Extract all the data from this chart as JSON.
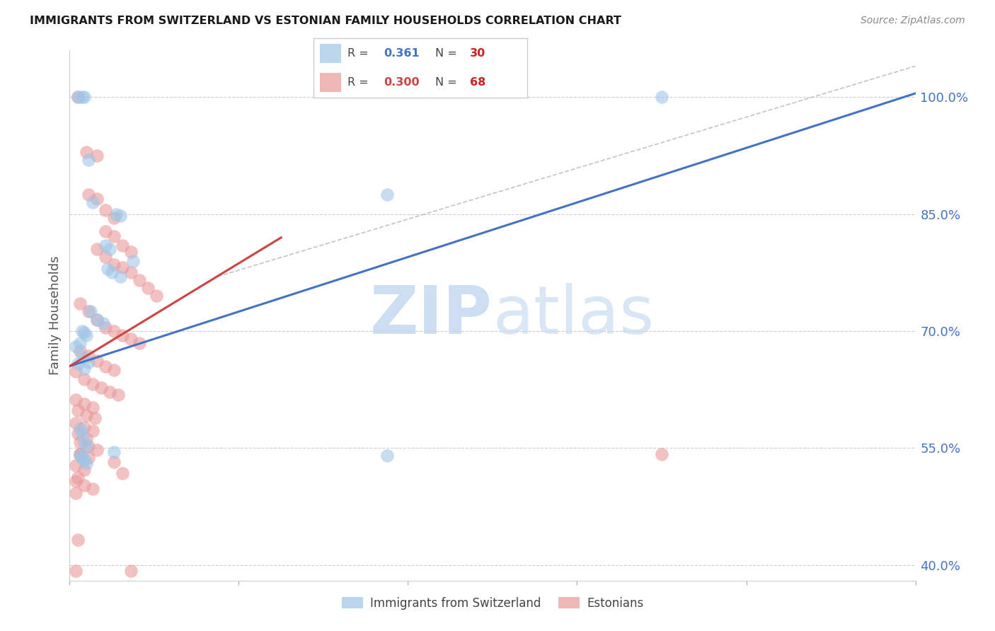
{
  "title": "IMMIGRANTS FROM SWITZERLAND VS ESTONIAN FAMILY HOUSEHOLDS CORRELATION CHART",
  "source": "Source: ZipAtlas.com",
  "ylabel": "Family Households",
  "yticks": [
    "100.0%",
    "85.0%",
    "70.0%",
    "55.0%",
    "40.0%"
  ],
  "ytick_vals": [
    1.0,
    0.85,
    0.7,
    0.55,
    0.4
  ],
  "xlim": [
    0.0,
    0.4
  ],
  "ylim": [
    0.38,
    1.06
  ],
  "blue_color": "#9fc5e8",
  "pink_color": "#ea9999",
  "blue_line_color": "#4472c4",
  "pink_line_color": "#cc4444",
  "blue_line": [
    [
      0.0,
      0.655
    ],
    [
      0.4,
      1.005
    ]
  ],
  "pink_line": [
    [
      0.0,
      0.655
    ],
    [
      0.1,
      0.82
    ]
  ],
  "blue_scatter": [
    [
      0.004,
      1.0
    ],
    [
      0.006,
      1.0
    ],
    [
      0.007,
      1.0
    ],
    [
      0.28,
      1.0
    ],
    [
      0.009,
      0.92
    ],
    [
      0.011,
      0.865
    ],
    [
      0.022,
      0.85
    ],
    [
      0.024,
      0.848
    ],
    [
      0.017,
      0.81
    ],
    [
      0.019,
      0.805
    ],
    [
      0.03,
      0.79
    ],
    [
      0.15,
      0.875
    ],
    [
      0.018,
      0.78
    ],
    [
      0.02,
      0.775
    ],
    [
      0.024,
      0.77
    ],
    [
      0.01,
      0.725
    ],
    [
      0.013,
      0.715
    ],
    [
      0.016,
      0.71
    ],
    [
      0.006,
      0.7
    ],
    [
      0.007,
      0.698
    ],
    [
      0.008,
      0.695
    ],
    [
      0.005,
      0.685
    ],
    [
      0.003,
      0.68
    ],
    [
      0.006,
      0.668
    ],
    [
      0.009,
      0.66
    ],
    [
      0.004,
      0.658
    ],
    [
      0.007,
      0.652
    ],
    [
      0.005,
      0.575
    ],
    [
      0.006,
      0.568
    ],
    [
      0.007,
      0.558
    ],
    [
      0.008,
      0.552
    ],
    [
      0.021,
      0.545
    ],
    [
      0.005,
      0.54
    ],
    [
      0.006,
      0.538
    ],
    [
      0.007,
      0.535
    ],
    [
      0.008,
      0.53
    ],
    [
      0.15,
      0.54
    ]
  ],
  "pink_scatter": [
    [
      0.004,
      1.0
    ],
    [
      0.008,
      0.93
    ],
    [
      0.013,
      0.925
    ],
    [
      0.009,
      0.875
    ],
    [
      0.013,
      0.87
    ],
    [
      0.017,
      0.855
    ],
    [
      0.021,
      0.845
    ],
    [
      0.017,
      0.828
    ],
    [
      0.021,
      0.822
    ],
    [
      0.025,
      0.81
    ],
    [
      0.029,
      0.802
    ],
    [
      0.013,
      0.805
    ],
    [
      0.017,
      0.795
    ],
    [
      0.021,
      0.785
    ],
    [
      0.025,
      0.782
    ],
    [
      0.029,
      0.775
    ],
    [
      0.033,
      0.765
    ],
    [
      0.037,
      0.755
    ],
    [
      0.041,
      0.745
    ],
    [
      0.005,
      0.735
    ],
    [
      0.009,
      0.725
    ],
    [
      0.013,
      0.715
    ],
    [
      0.017,
      0.705
    ],
    [
      0.021,
      0.7
    ],
    [
      0.025,
      0.695
    ],
    [
      0.029,
      0.69
    ],
    [
      0.033,
      0.685
    ],
    [
      0.005,
      0.675
    ],
    [
      0.009,
      0.668
    ],
    [
      0.013,
      0.662
    ],
    [
      0.017,
      0.655
    ],
    [
      0.021,
      0.65
    ],
    [
      0.003,
      0.648
    ],
    [
      0.007,
      0.638
    ],
    [
      0.011,
      0.632
    ],
    [
      0.015,
      0.627
    ],
    [
      0.019,
      0.622
    ],
    [
      0.023,
      0.618
    ],
    [
      0.003,
      0.612
    ],
    [
      0.007,
      0.607
    ],
    [
      0.011,
      0.602
    ],
    [
      0.004,
      0.598
    ],
    [
      0.008,
      0.592
    ],
    [
      0.012,
      0.588
    ],
    [
      0.003,
      0.582
    ],
    [
      0.007,
      0.577
    ],
    [
      0.011,
      0.572
    ],
    [
      0.004,
      0.568
    ],
    [
      0.008,
      0.562
    ],
    [
      0.005,
      0.558
    ],
    [
      0.009,
      0.552
    ],
    [
      0.013,
      0.548
    ],
    [
      0.005,
      0.542
    ],
    [
      0.009,
      0.538
    ],
    [
      0.021,
      0.532
    ],
    [
      0.003,
      0.528
    ],
    [
      0.007,
      0.522
    ],
    [
      0.025,
      0.518
    ],
    [
      0.004,
      0.512
    ],
    [
      0.003,
      0.508
    ],
    [
      0.007,
      0.502
    ],
    [
      0.011,
      0.498
    ],
    [
      0.003,
      0.492
    ],
    [
      0.005,
      0.542
    ],
    [
      0.28,
      0.542
    ],
    [
      0.004,
      0.432
    ],
    [
      0.029,
      0.392
    ],
    [
      0.003,
      0.392
    ]
  ]
}
